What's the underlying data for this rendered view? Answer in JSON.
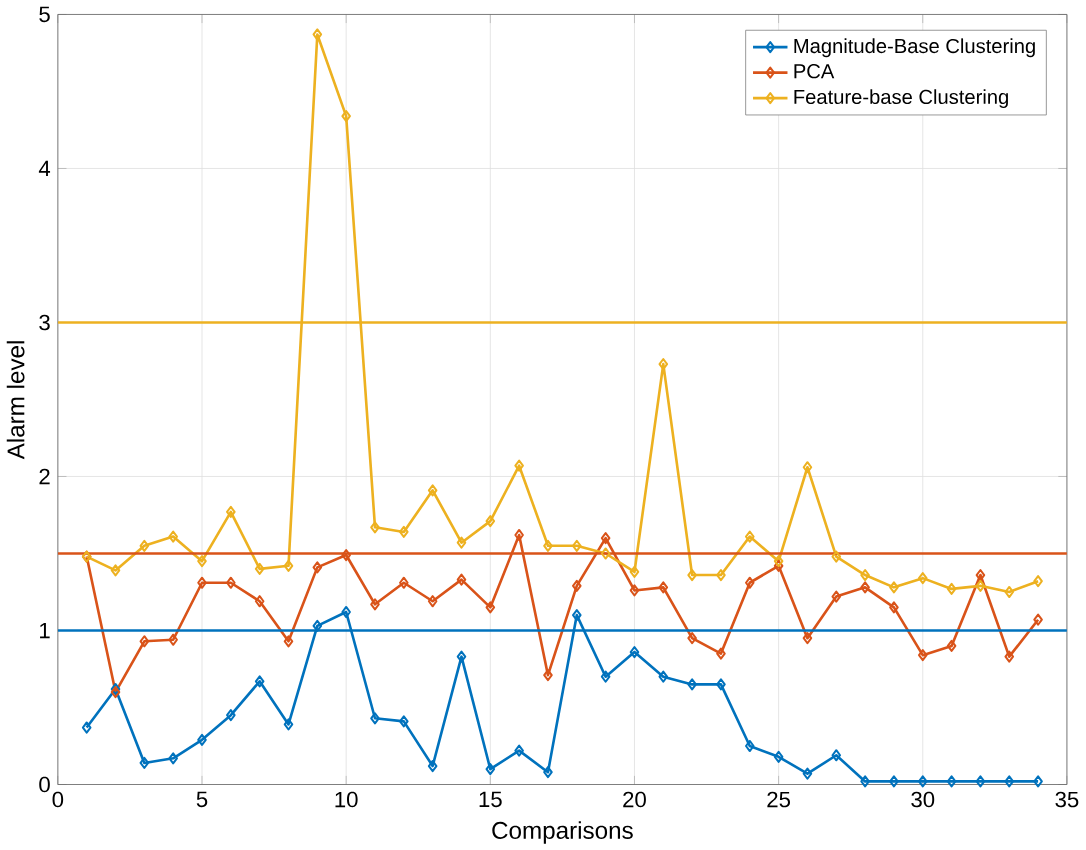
{
  "chart_data": {
    "type": "line",
    "xlabel": "Comparisons",
    "ylabel": "Alarm level",
    "x": [
      1,
      2,
      3,
      4,
      5,
      6,
      7,
      8,
      9,
      10,
      11,
      12,
      13,
      14,
      15,
      16,
      17,
      18,
      19,
      20,
      21,
      22,
      23,
      24,
      25,
      26,
      27,
      28,
      29,
      30,
      31,
      32,
      33,
      34
    ],
    "series": [
      {
        "name": "Magnitude-Base Clustering",
        "color": "#0072bd",
        "values": [
          0.37,
          0.62,
          0.14,
          0.17,
          0.29,
          0.45,
          0.67,
          0.39,
          1.03,
          1.12,
          0.43,
          0.41,
          0.12,
          0.83,
          0.1,
          0.22,
          0.08,
          1.1,
          0.7,
          0.86,
          0.7,
          0.65,
          0.65,
          0.25,
          0.18,
          0.07,
          0.19,
          0.02,
          0.02,
          0.02,
          0.02,
          0.02,
          0.02,
          0.02
        ]
      },
      {
        "name": "PCA",
        "color": "#d95319",
        "values": [
          1.48,
          0.6,
          0.93,
          0.94,
          1.31,
          1.31,
          1.19,
          0.93,
          1.41,
          1.49,
          1.17,
          1.31,
          1.19,
          1.33,
          1.15,
          1.62,
          0.71,
          1.29,
          1.6,
          1.26,
          1.28,
          0.95,
          0.85,
          1.31,
          1.42,
          0.95,
          1.22,
          1.28,
          1.15,
          0.84,
          0.9,
          1.36,
          0.83,
          1.07
        ]
      },
      {
        "name": "Feature-base Clustering",
        "color": "#edb120",
        "values": [
          1.48,
          1.39,
          1.55,
          1.61,
          1.45,
          1.77,
          1.4,
          1.42,
          4.87,
          4.34,
          1.67,
          1.64,
          1.91,
          1.57,
          1.71,
          2.07,
          1.55,
          1.55,
          1.5,
          1.38,
          2.73,
          1.36,
          1.36,
          1.61,
          1.45,
          2.06,
          1.48,
          1.36,
          1.28,
          1.34,
          1.27,
          1.29,
          1.25,
          1.32
        ]
      }
    ],
    "ref_lines": [
      {
        "axis": "y",
        "value": 1,
        "color": "#0072bd"
      },
      {
        "axis": "y",
        "value": 1.5,
        "color": "#d95319"
      },
      {
        "axis": "y",
        "value": 3,
        "color": "#edb120"
      }
    ],
    "xlim": [
      0,
      35
    ],
    "ylim": [
      0,
      5
    ],
    "xticks": [
      0,
      5,
      10,
      15,
      20,
      25,
      30,
      35
    ],
    "yticks": [
      0,
      1,
      2,
      3,
      4,
      5
    ],
    "grid": true,
    "legend": "top right",
    "marker": "diamond",
    "line_style": "solid"
  }
}
